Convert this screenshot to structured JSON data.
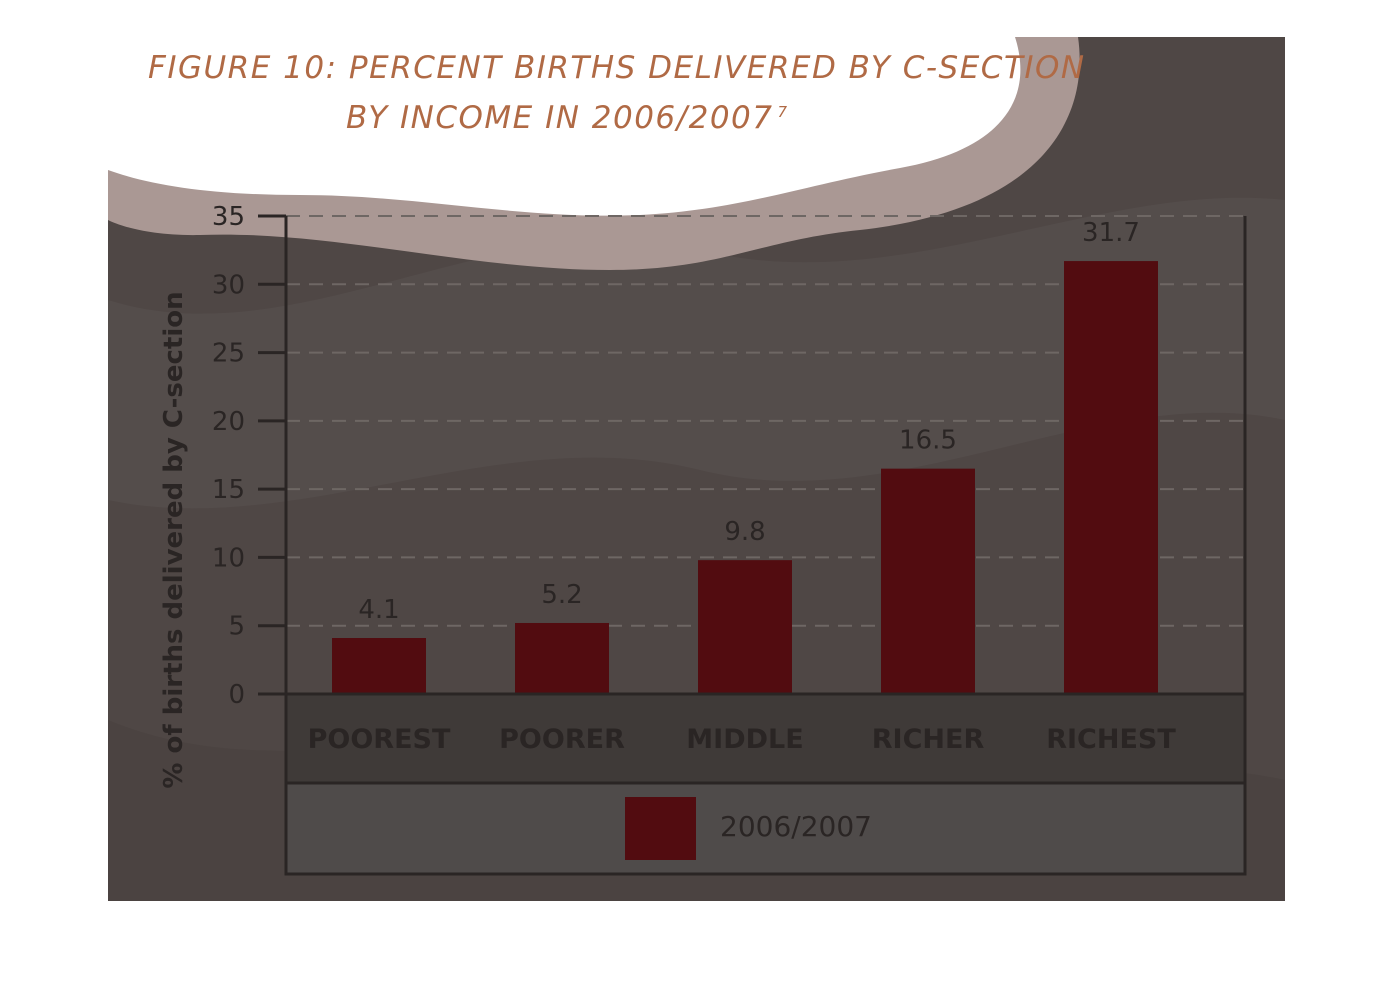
{
  "title": {
    "line1": "FIGURE 10: PERCENT BIRTHS DELIVERED BY C-SECTION",
    "line2": "BY INCOME IN 2006/2007",
    "footnote": "7"
  },
  "colors": {
    "bar": "#520c10",
    "title": "#b06a45",
    "background": "#4f4745",
    "text": "#2a2524"
  },
  "chart_data": {
    "type": "bar",
    "title": "FIGURE 10: PERCENT BIRTHS DELIVERED BY C-SECTION BY INCOME IN 2006/2007",
    "categories": [
      "POOREST",
      "POORER",
      "MIDDLE",
      "RICHER",
      "RICHEST"
    ],
    "series": [
      {
        "name": "2006/2007",
        "values": [
          4.1,
          5.2,
          9.8,
          16.5,
          31.7
        ]
      }
    ],
    "value_labels": [
      "4.1",
      "5.2",
      "9.8",
      "16.5",
      "31.7"
    ],
    "ylabel": "% of births delivered by C-section",
    "xlabel": "",
    "ylim": [
      0,
      35
    ],
    "yticks": [
      0,
      5,
      10,
      15,
      20,
      25,
      30,
      35
    ],
    "grid": "horizontal-dashed",
    "legend": {
      "position": "bottom",
      "entries": [
        "2006/2007"
      ]
    }
  }
}
